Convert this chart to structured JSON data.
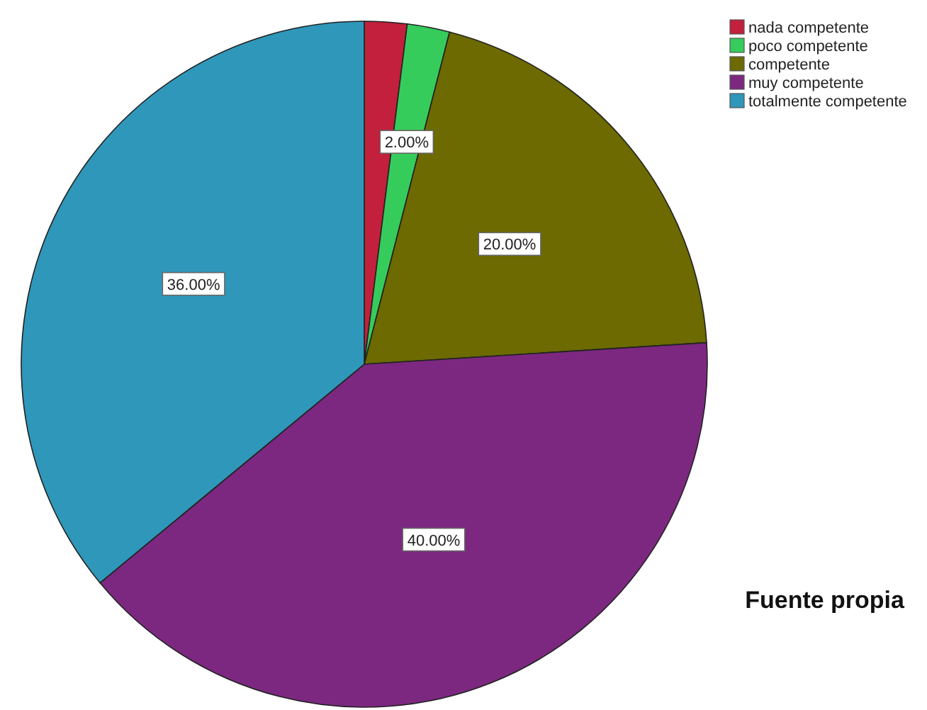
{
  "chart_data": {
    "type": "pie",
    "categories": [
      "nada competente",
      "poco competente",
      "competente",
      "muy competente",
      "totalmente competente"
    ],
    "values": [
      2,
      2,
      20,
      40,
      36
    ],
    "colors": [
      "#c2203c",
      "#36cc5c",
      "#6c6a00",
      "#7c2880",
      "#2f97b9"
    ],
    "value_labels": [
      null,
      "2.00%",
      "20.00%",
      "40.00%",
      "36.00%"
    ],
    "legend": "top right",
    "annotations": [
      "Fuente propia"
    ]
  }
}
